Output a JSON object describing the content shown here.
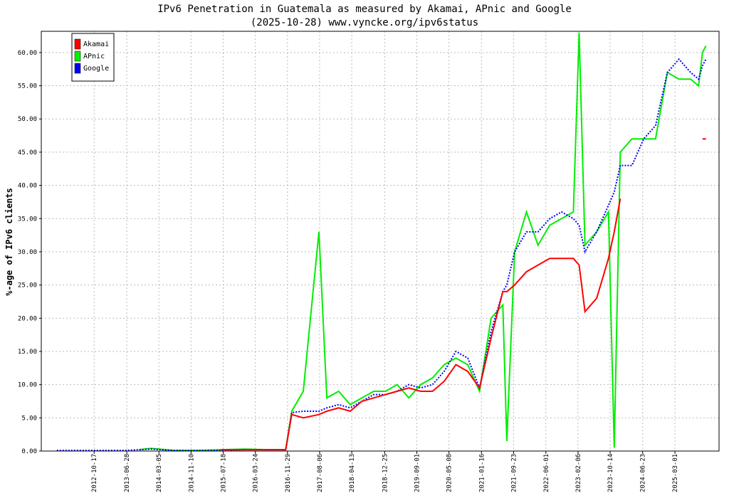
{
  "chart_data": {
    "type": "line",
    "title": "IPv6 Penetration in Guatemala as measured by Akamai, APnic and Google",
    "subtitle": "(2025-10-28) www.vyncke.org/ipv6status",
    "y_label": "%-age of IPv6 clients",
    "legend": "top-left",
    "grid": true,
    "x": [
      "2012-01-01",
      "2012-07-01",
      "2013-01-01",
      "2013-07-01",
      "2013-10-01",
      "2014-01-01",
      "2014-07-01",
      "2015-01-01",
      "2015-07-01",
      "2016-01-01",
      "2016-07-01",
      "2016-11-15",
      "2017-01-01",
      "2017-04-01",
      "2017-08-01",
      "2017-10-01",
      "2018-01-01",
      "2018-04-01",
      "2018-07-01",
      "2018-10-01",
      "2019-01-01",
      "2019-04-01",
      "2019-07-01",
      "2019-10-01",
      "2020-01-01",
      "2020-04-01",
      "2020-07-01",
      "2020-10-01",
      "2021-01-01",
      "2021-04-01",
      "2021-07-01",
      "2021-08-01",
      "2021-10-01",
      "2022-01-01",
      "2022-04-01",
      "2022-07-01",
      "2022-10-01",
      "2023-01-01",
      "2023-02-15",
      "2023-04-01",
      "2023-07-01",
      "2023-10-01",
      "2023-11-15",
      "2024-01-01",
      "2024-04-01",
      "2024-07-01",
      "2024-10-01",
      "2025-01-01",
      "2025-04-01",
      "2025-07-01",
      "2025-09-01",
      "2025-10-01",
      "2025-10-28"
    ],
    "series": [
      {
        "name": "Akamai",
        "color": "#ff0000",
        "style": "solid",
        "values": [
          null,
          null,
          null,
          null,
          null,
          null,
          null,
          null,
          0.2,
          0.2,
          0.2,
          0.2,
          5.5,
          5,
          5.5,
          6,
          6.5,
          6,
          7.5,
          8,
          8.5,
          9,
          9.5,
          9,
          9,
          10.5,
          13,
          12,
          9.5,
          17,
          24,
          24,
          25,
          27,
          28,
          29,
          29,
          29,
          28,
          21,
          23,
          29,
          33,
          38,
          null,
          null,
          null,
          null,
          null,
          null,
          null,
          47,
          47
        ]
      },
      {
        "name": "APnic",
        "color": "#00ee00",
        "style": "solid",
        "values": [
          null,
          null,
          null,
          null,
          0.2,
          0.4,
          0.1,
          0.1,
          0.2,
          0.3,
          0.2,
          0.2,
          6,
          9,
          33,
          8,
          9,
          7,
          8,
          9,
          9,
          10,
          8,
          10,
          11,
          13,
          14,
          13,
          9,
          20,
          22,
          1.5,
          30,
          36,
          31,
          34,
          35,
          36,
          63,
          31,
          33,
          36,
          0.5,
          45,
          47,
          47,
          47,
          57,
          56,
          56,
          55,
          60,
          61
        ]
      },
      {
        "name": "Google",
        "color": "#0000ff",
        "style": "dotted",
        "values": [
          0.1,
          0.1,
          0.1,
          0.1,
          0.2,
          0.3,
          0.1,
          0.1,
          0.1,
          0.2,
          0.2,
          0.2,
          5.8,
          6,
          6,
          6.5,
          7,
          6.5,
          7.5,
          8.5,
          8.5,
          9,
          10,
          9.5,
          10,
          12,
          15,
          14,
          9.5,
          18,
          24,
          25,
          30,
          33,
          33,
          35,
          36,
          35,
          34,
          30,
          33,
          37,
          39,
          43,
          43,
          47,
          49,
          57,
          59,
          57,
          56,
          58,
          59
        ]
      }
    ],
    "xlim": [
      "2011-09-02",
      "2026-02-07"
    ],
    "xticks": [
      "2012-10-17",
      "2013-06-28",
      "2014-03-05",
      "2014-11-10",
      "2015-07-18",
      "2016-03-24",
      "2016-11-29",
      "2017-08-06",
      "2018-04-13",
      "2018-12-25",
      "2019-09-01",
      "2020-05-08",
      "2021-01-16",
      "2021-09-23",
      "2022-06-01",
      "2023-02-06",
      "2023-10-14",
      "2024-06-23",
      "2025-03-01"
    ],
    "ylim": [
      0,
      63.2
    ],
    "yticks": [
      {
        "value": 0,
        "label": "0.00"
      },
      {
        "value": 5,
        "label": "5.00"
      },
      {
        "value": 10,
        "label": "10.00"
      },
      {
        "value": 15,
        "label": "15.00"
      },
      {
        "value": 20,
        "label": "20.00"
      },
      {
        "value": 25,
        "label": "25.00"
      },
      {
        "value": 30,
        "label": "30.00"
      },
      {
        "value": 35,
        "label": "35.00"
      },
      {
        "value": 40,
        "label": "40.00"
      },
      {
        "value": 45,
        "label": "45.00"
      },
      {
        "value": 50,
        "label": "50.00"
      },
      {
        "value": 55,
        "label": "55.00"
      },
      {
        "value": 60,
        "label": "60.00"
      }
    ]
  }
}
